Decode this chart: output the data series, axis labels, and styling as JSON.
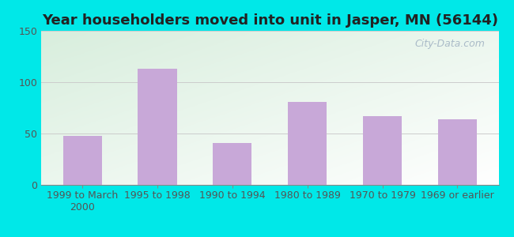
{
  "title": "Year householders moved into unit in Jasper, MN (56144)",
  "categories": [
    "1999 to March\n2000",
    "1995 to 1998",
    "1990 to 1994",
    "1980 to 1989",
    "1970 to 1979",
    "1969 or earlier"
  ],
  "values": [
    48,
    113,
    41,
    81,
    67,
    64
  ],
  "bar_color": "#c8a8d8",
  "ylim": [
    0,
    150
  ],
  "yticks": [
    0,
    50,
    100,
    150
  ],
  "background_outer": "#00e8e8",
  "bg_top_left": "#d8eedd",
  "bg_bottom_right": "#ffffff",
  "grid_color": "#cccccc",
  "title_fontsize": 13,
  "tick_fontsize": 9,
  "watermark_text": "City-Data.com",
  "watermark_color": "#aabbc8",
  "bar_width": 0.52,
  "xlim_left": -0.55,
  "xlim_right": 5.55
}
